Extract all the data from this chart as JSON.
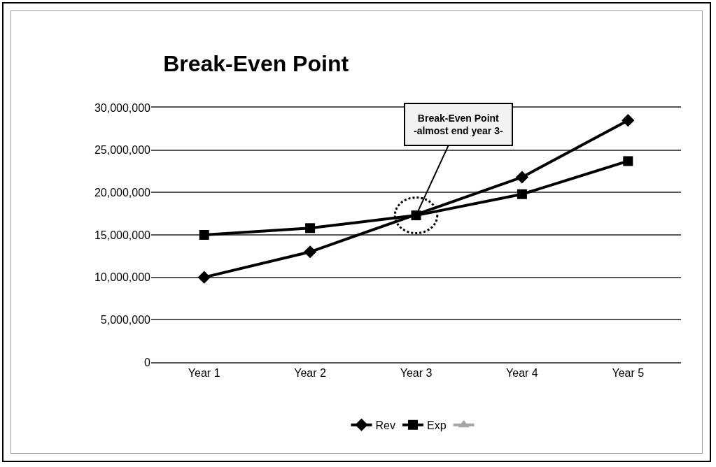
{
  "chart_data": {
    "type": "line",
    "title": "Break-Even Point",
    "categories": [
      "Year 1",
      "Year 2",
      "Year 3",
      "Year 4",
      "Year 5"
    ],
    "series": [
      {
        "name": "Rev",
        "color": "#000000",
        "marker": "diamond",
        "values": [
          10000000,
          13000000,
          null,
          21800000,
          28500000
        ]
      },
      {
        "name": "Exp",
        "color": "#000000",
        "marker": "square",
        "values": [
          15000000,
          15800000,
          17300000,
          19800000,
          23700000
        ]
      },
      {
        "color": "#a6a6a6",
        "marker": "triangle",
        "values": [
          null,
          null,
          null,
          null,
          null
        ]
      }
    ],
    "ylim": [
      0,
      30000000
    ],
    "yticks": [
      {
        "value": 0,
        "label": "0"
      },
      {
        "value": 5000000,
        "label": "5,000,000"
      },
      {
        "value": 10000000,
        "label": "10,000,000"
      },
      {
        "value": 15000000,
        "label": "15,000,000"
      },
      {
        "value": 20000000,
        "label": "20,000,000"
      },
      {
        "value": 25000000,
        "label": "25,000,000"
      },
      {
        "value": 30000000,
        "label": "30,000,000"
      }
    ],
    "grid": "y",
    "legend": "bottom",
    "line_style": "solid",
    "annotations": [
      {
        "text": "Break-Even Point\n-almost end year 3-",
        "x": "Year 3",
        "y": 17300000
      }
    ]
  }
}
